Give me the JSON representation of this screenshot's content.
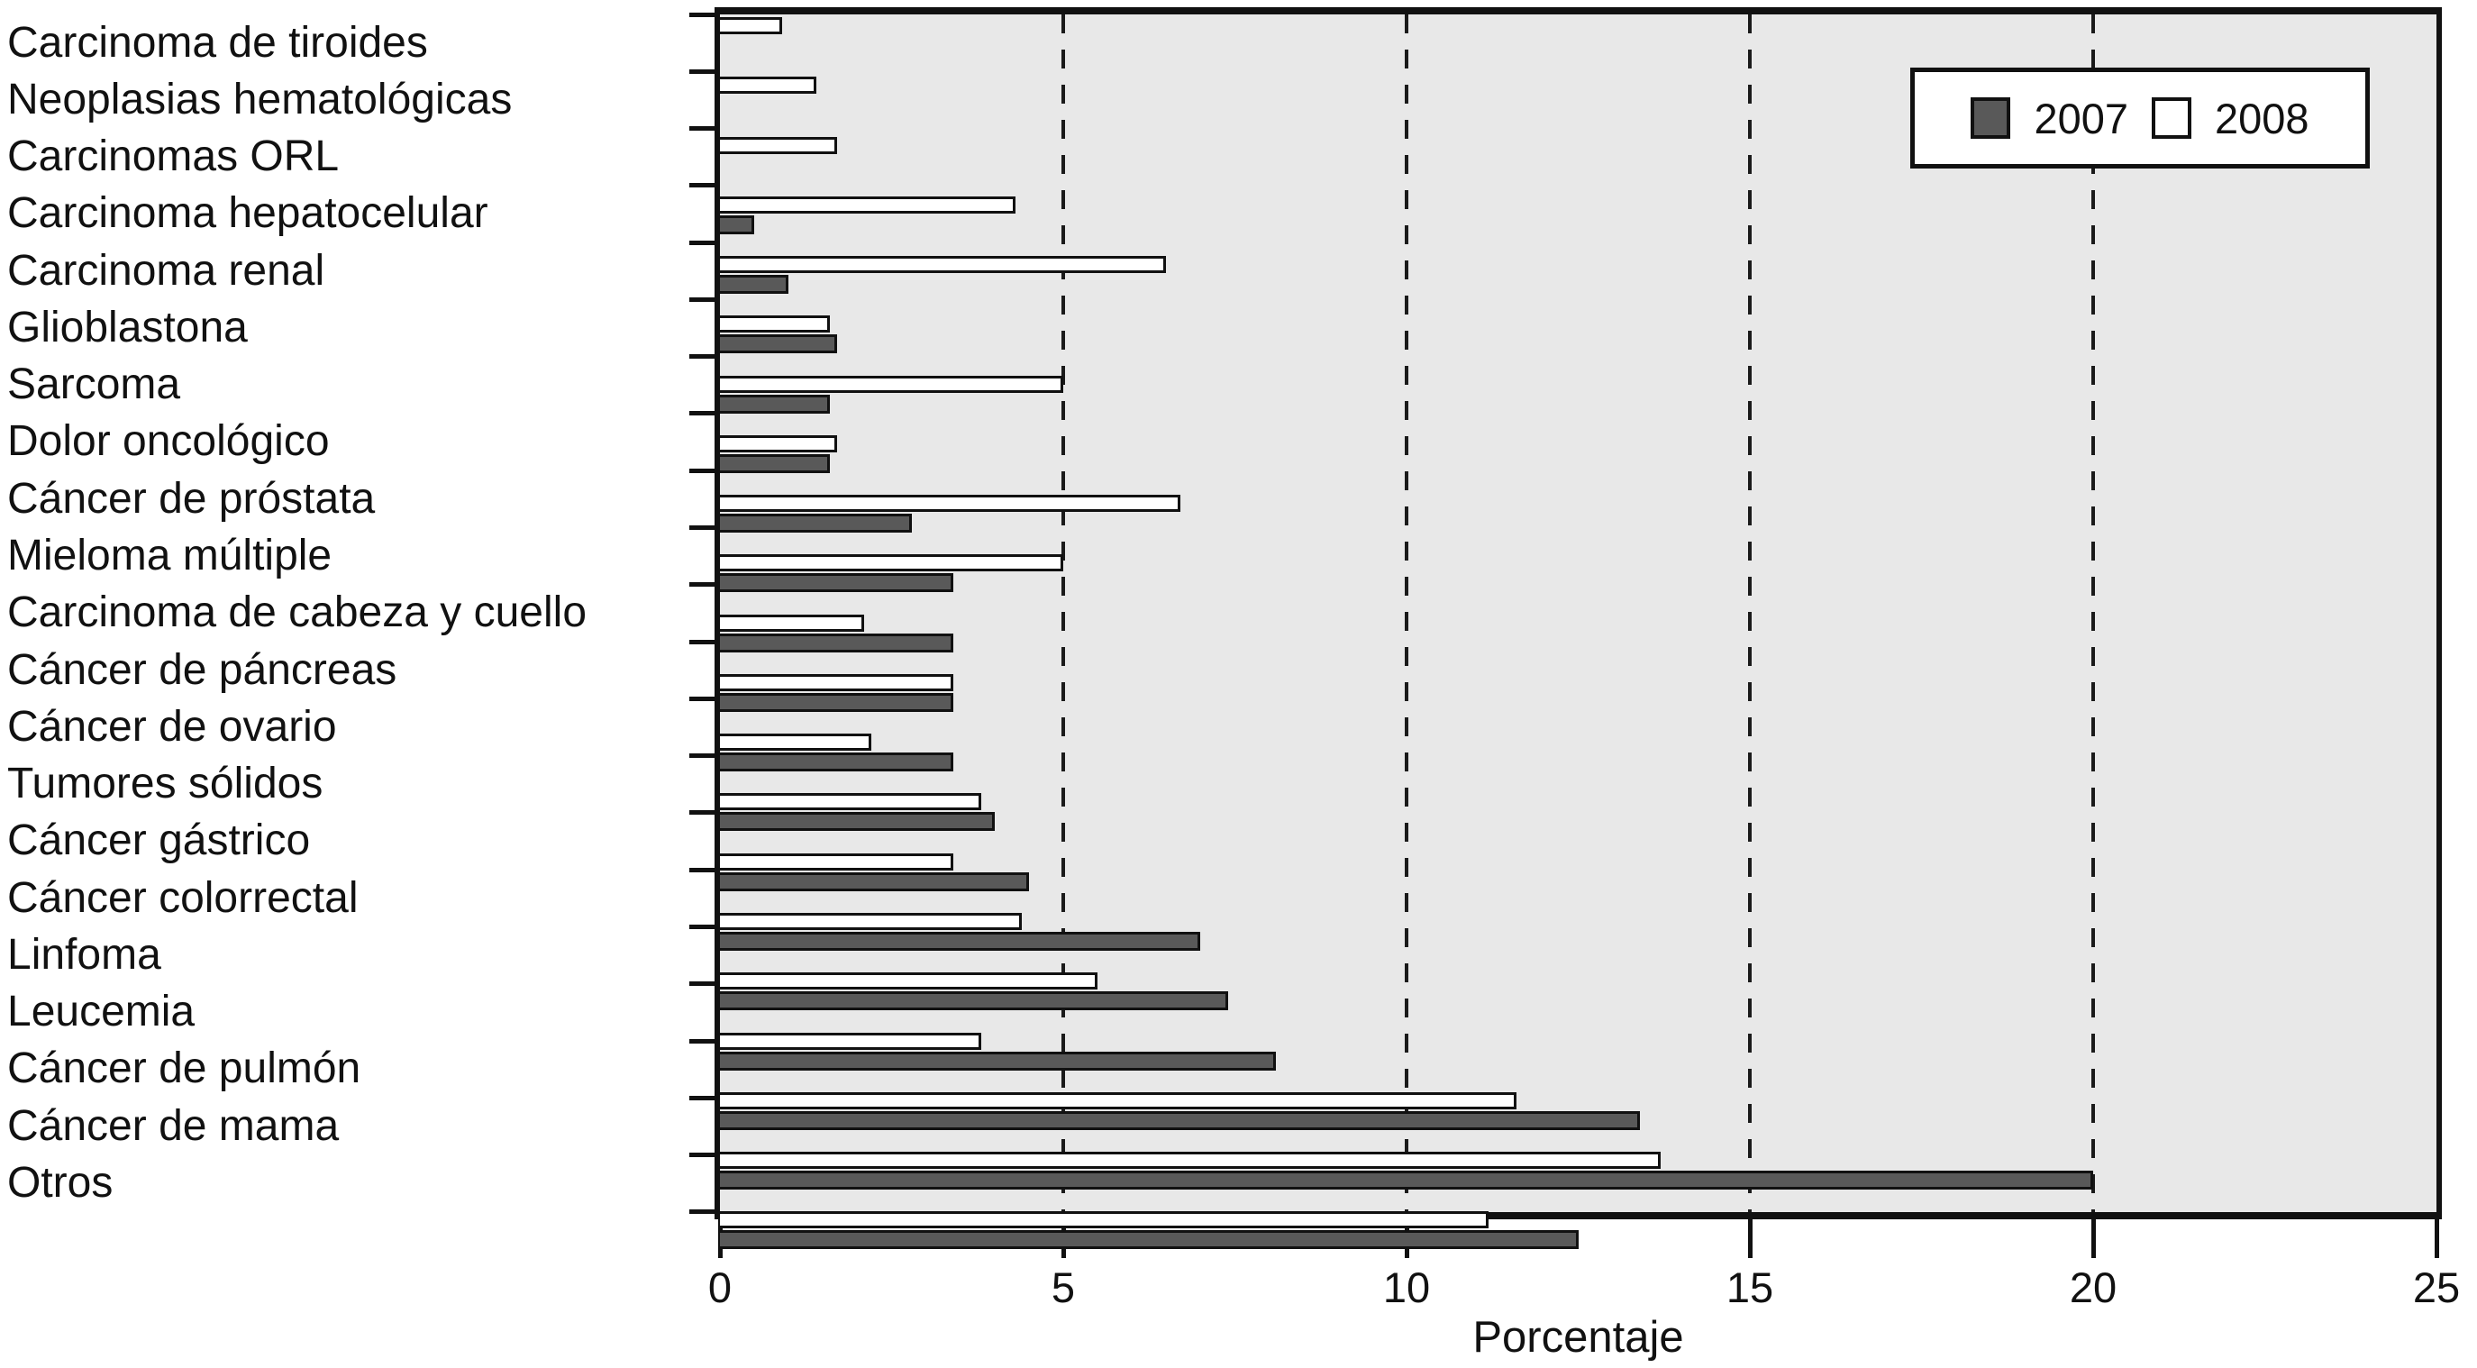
{
  "figure": {
    "xlabel": "Porcentaje"
  },
  "chart_data": {
    "type": "bar",
    "orientation": "horizontal",
    "title": "",
    "xlabel": "Porcentaje",
    "ylabel": "",
    "xlim": [
      0,
      25
    ],
    "x_ticks": [
      0,
      5,
      10,
      15,
      20,
      25
    ],
    "gridlines_at": [
      5,
      10,
      15,
      20
    ],
    "grid": "vertical-dashed",
    "legend_position": "top-right-inside",
    "plot_bg": "#e8e8e8",
    "bar_outline": "#111111",
    "categories": [
      "Carcinoma de tiroides",
      "Neoplasias hematológicas",
      "Carcinomas ORL",
      "Carcinoma hepatocelular",
      "Carcinoma renal",
      "Glioblastona",
      "Sarcoma",
      "Dolor oncológico",
      "Cáncer de próstata",
      "Mieloma múltiple",
      "Carcinoma de cabeza y cuello",
      "Cáncer de páncreas",
      "Cáncer de ovario",
      "Tumores sólidos",
      "Cáncer gástrico",
      "Cáncer colorrectal",
      "Linfoma",
      "Leucemia",
      "Cáncer de pulmón",
      "Cáncer de mama",
      "Otros"
    ],
    "series": [
      {
        "name": "2007",
        "color": "#595959",
        "values": [
          0,
          0,
          0,
          0.5,
          1.0,
          1.7,
          1.6,
          1.6,
          2.8,
          3.4,
          3.4,
          3.4,
          3.4,
          4.0,
          4.5,
          7.0,
          7.4,
          8.1,
          13.4,
          20.0,
          12.5
        ]
      },
      {
        "name": "2008",
        "color": "#ffffff",
        "values": [
          0.9,
          1.4,
          1.7,
          4.3,
          6.5,
          1.6,
          5.0,
          1.7,
          6.7,
          5.0,
          2.1,
          3.4,
          2.2,
          3.8,
          3.4,
          4.4,
          5.5,
          3.8,
          11.6,
          13.7,
          11.2
        ]
      }
    ]
  }
}
